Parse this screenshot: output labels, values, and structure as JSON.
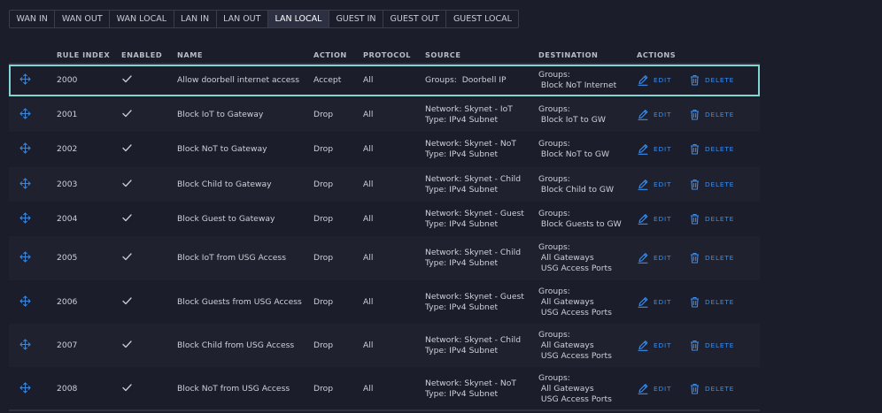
{
  "tabs": [
    {
      "label": "WAN IN",
      "active": false
    },
    {
      "label": "WAN OUT",
      "active": false
    },
    {
      "label": "WAN LOCAL",
      "active": false
    },
    {
      "label": "LAN IN",
      "active": false
    },
    {
      "label": "LAN OUT",
      "active": false
    },
    {
      "label": "LAN LOCAL",
      "active": true
    },
    {
      "label": "GUEST IN",
      "active": false
    },
    {
      "label": "GUEST OUT",
      "active": false
    },
    {
      "label": "GUEST LOCAL",
      "active": false
    }
  ],
  "columns": {
    "rule_index": "RULE INDEX",
    "enabled": "ENABLED",
    "name": "NAME",
    "action": "ACTION",
    "protocol": "PROTOCOL",
    "source": "SOURCE",
    "destination": "DESTINATION",
    "actions": "ACTIONS"
  },
  "buttons": {
    "edit": "EDIT",
    "delete": "DELETE"
  },
  "icons": {
    "drag": "move-arrows-icon",
    "enabled": "checkmark-icon",
    "edit": "pencil-icon",
    "delete": "trash-icon"
  },
  "colors": {
    "accent": "#3a8ef0",
    "selected_outline": "#7fd6d2",
    "background": "#1b1d2a"
  },
  "rules": [
    {
      "index": "2000",
      "enabled": true,
      "name": "Allow doorbell internet access",
      "action": "Accept",
      "protocol": "All",
      "source": [
        "Groups:  Doorbell IP"
      ],
      "destination": [
        "Groups:",
        " Block NoT Internet"
      ],
      "selected": true
    },
    {
      "index": "2001",
      "enabled": true,
      "name": "Block IoT to Gateway",
      "action": "Drop",
      "protocol": "All",
      "source": [
        "Network: Skynet - IoT",
        "Type: IPv4 Subnet"
      ],
      "destination": [
        "Groups:",
        " Block IoT to GW"
      ],
      "selected": false
    },
    {
      "index": "2002",
      "enabled": true,
      "name": "Block NoT to Gateway",
      "action": "Drop",
      "protocol": "All",
      "source": [
        "Network: Skynet - NoT",
        "Type: IPv4 Subnet"
      ],
      "destination": [
        "Groups:",
        " Block NoT to GW"
      ],
      "selected": false
    },
    {
      "index": "2003",
      "enabled": true,
      "name": "Block Child to Gateway",
      "action": "Drop",
      "protocol": "All",
      "source": [
        "Network: Skynet - Child",
        "Type: IPv4 Subnet"
      ],
      "destination": [
        "Groups:",
        " Block Child to GW"
      ],
      "selected": false
    },
    {
      "index": "2004",
      "enabled": true,
      "name": "Block Guest to Gateway",
      "action": "Drop",
      "protocol": "All",
      "source": [
        "Network: Skynet - Guest",
        "Type: IPv4 Subnet"
      ],
      "destination": [
        "Groups:",
        " Block Guests to GW"
      ],
      "selected": false
    },
    {
      "index": "2005",
      "enabled": true,
      "name": "Block IoT from USG Access",
      "action": "Drop",
      "protocol": "All",
      "source": [
        "Network: Skynet - Child",
        "Type: IPv4 Subnet"
      ],
      "destination": [
        "Groups:",
        " All Gateways",
        " USG Access Ports"
      ],
      "selected": false
    },
    {
      "index": "2006",
      "enabled": true,
      "name": "Block Guests from USG Access",
      "action": "Drop",
      "protocol": "All",
      "source": [
        "Network: Skynet - Guest",
        "Type: IPv4 Subnet"
      ],
      "destination": [
        "Groups:",
        " All Gateways",
        " USG Access Ports"
      ],
      "selected": false
    },
    {
      "index": "2007",
      "enabled": true,
      "name": "Block Child from USG Access",
      "action": "Drop",
      "protocol": "All",
      "source": [
        "Network: Skynet - Child",
        "Type: IPv4 Subnet"
      ],
      "destination": [
        "Groups:",
        " All Gateways",
        " USG Access Ports"
      ],
      "selected": false
    },
    {
      "index": "2008",
      "enabled": true,
      "name": "Block NoT from USG Access",
      "action": "Drop",
      "protocol": "All",
      "source": [
        "Network: Skynet - NoT",
        "Type: IPv4 Subnet"
      ],
      "destination": [
        "Groups:",
        " All Gateways",
        " USG Access Ports"
      ],
      "selected": false
    }
  ]
}
